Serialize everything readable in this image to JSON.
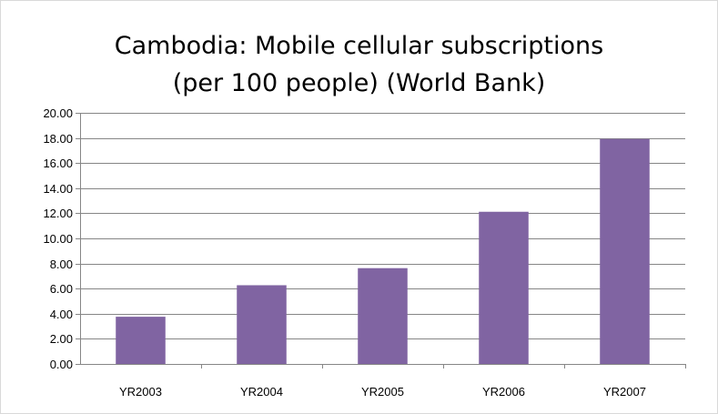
{
  "chart_data": {
    "type": "bar",
    "title": [
      "Cambodia: Mobile cellular subscriptions",
      "(per 100 people) (World Bank)"
    ],
    "categories": [
      "YR2003",
      "YR2004",
      "YR2005",
      "YR2006",
      "YR2007"
    ],
    "values": [
      3.76,
      6.27,
      7.63,
      12.12,
      17.92
    ],
    "ylim": [
      0,
      20
    ],
    "yticks": [
      "0.00",
      "2.00",
      "4.00",
      "6.00",
      "8.00",
      "10.00",
      "12.00",
      "14.00",
      "16.00",
      "18.00",
      "20.00"
    ],
    "xlabel": "",
    "ylabel": "",
    "grid": true,
    "legend": "none",
    "bar_color": "#8064a2",
    "grid_color": "#868686"
  }
}
